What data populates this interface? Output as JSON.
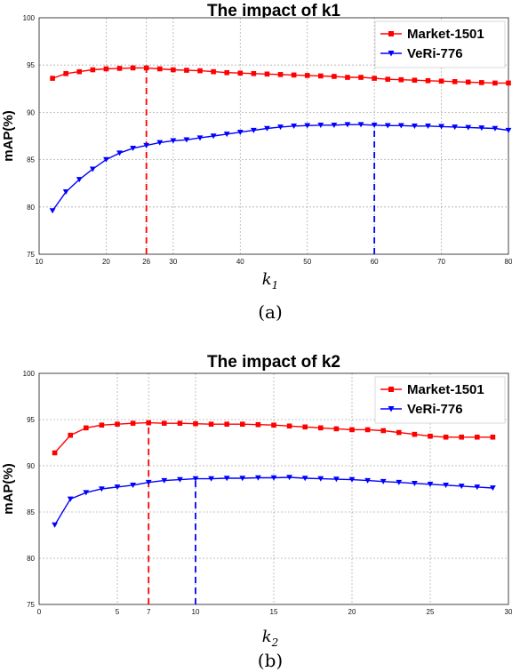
{
  "chart_data": [
    {
      "type": "line",
      "title": "The impact of k1",
      "ylabel": "mAP(%)",
      "xlabel_main": "k",
      "xlabel_sub": "1",
      "caption": "(a)",
      "xlim": [
        10,
        80
      ],
      "ylim": [
        75,
        100
      ],
      "xticks": [
        10,
        20,
        26,
        30,
        40,
        50,
        60,
        70,
        80
      ],
      "yticks": [
        75,
        80,
        85,
        90,
        95,
        100
      ],
      "grid": true,
      "legend_position": "top-right",
      "series": [
        {
          "name": "Market-1501",
          "color": "#ff0000",
          "marker": "square",
          "x": [
            12,
            14,
            16,
            18,
            20,
            22,
            24,
            26,
            28,
            30,
            32,
            34,
            36,
            38,
            40,
            42,
            44,
            46,
            48,
            50,
            52,
            54,
            56,
            58,
            60,
            62,
            64,
            66,
            68,
            70,
            72,
            74,
            76,
            78,
            80
          ],
          "y": [
            93.6,
            94.1,
            94.3,
            94.5,
            94.6,
            94.65,
            94.7,
            94.7,
            94.6,
            94.5,
            94.45,
            94.4,
            94.3,
            94.2,
            94.15,
            94.1,
            94.05,
            94.0,
            93.95,
            93.9,
            93.85,
            93.8,
            93.7,
            93.7,
            93.6,
            93.5,
            93.45,
            93.4,
            93.35,
            93.3,
            93.25,
            93.2,
            93.15,
            93.1,
            93.1
          ]
        },
        {
          "name": "VeRi-776",
          "color": "#0000ff",
          "marker": "triangle-down",
          "x": [
            12,
            14,
            16,
            18,
            20,
            22,
            24,
            26,
            28,
            30,
            32,
            34,
            36,
            38,
            40,
            42,
            44,
            46,
            48,
            50,
            52,
            54,
            56,
            58,
            60,
            62,
            64,
            66,
            68,
            70,
            72,
            74,
            76,
            78,
            80
          ],
          "y": [
            79.6,
            81.6,
            82.9,
            84.0,
            85.0,
            85.7,
            86.2,
            86.5,
            86.8,
            87.0,
            87.1,
            87.3,
            87.5,
            87.7,
            87.9,
            88.1,
            88.3,
            88.45,
            88.55,
            88.6,
            88.65,
            88.65,
            88.7,
            88.7,
            88.65,
            88.6,
            88.6,
            88.55,
            88.55,
            88.5,
            88.45,
            88.4,
            88.35,
            88.3,
            88.1
          ]
        }
      ],
      "reference_lines": [
        {
          "x": 26,
          "color": "#ff0000"
        },
        {
          "x": 60,
          "color": "#0000ff"
        }
      ]
    },
    {
      "type": "line",
      "title": "The impact of k2",
      "ylabel": "mAP(%)",
      "xlabel_main": "k",
      "xlabel_sub": "2",
      "caption": "(b)",
      "xlim": [
        0,
        30
      ],
      "ylim": [
        75,
        100
      ],
      "xticks": [
        0,
        5,
        7,
        10,
        15,
        20,
        25,
        30
      ],
      "yticks": [
        75,
        80,
        85,
        90,
        95,
        100
      ],
      "grid": true,
      "legend_position": "top-right",
      "series": [
        {
          "name": "Market-1501",
          "color": "#ff0000",
          "marker": "square",
          "x": [
            1,
            2,
            3,
            4,
            5,
            6,
            7,
            8,
            9,
            10,
            11,
            12,
            13,
            14,
            15,
            16,
            17,
            18,
            19,
            20,
            21,
            22,
            23,
            24,
            25,
            26,
            27,
            28,
            29
          ],
          "y": [
            91.4,
            93.3,
            94.1,
            94.4,
            94.5,
            94.6,
            94.65,
            94.6,
            94.6,
            94.55,
            94.5,
            94.5,
            94.5,
            94.45,
            94.4,
            94.3,
            94.2,
            94.1,
            94.0,
            93.9,
            93.9,
            93.8,
            93.6,
            93.4,
            93.2,
            93.1,
            93.1,
            93.1,
            93.1
          ]
        },
        {
          "name": "VeRi-776",
          "color": "#0000ff",
          "marker": "triangle-down",
          "x": [
            1,
            2,
            3,
            4,
            5,
            6,
            7,
            8,
            9,
            10,
            11,
            12,
            13,
            14,
            15,
            16,
            17,
            18,
            19,
            20,
            21,
            22,
            23,
            24,
            25,
            26,
            27,
            28,
            29
          ],
          "y": [
            83.6,
            86.4,
            87.1,
            87.5,
            87.7,
            87.9,
            88.2,
            88.4,
            88.5,
            88.6,
            88.6,
            88.65,
            88.65,
            88.7,
            88.7,
            88.75,
            88.65,
            88.6,
            88.55,
            88.5,
            88.4,
            88.3,
            88.2,
            88.1,
            88.0,
            87.9,
            87.8,
            87.7,
            87.6
          ]
        }
      ],
      "reference_lines": [
        {
          "x": 7,
          "color": "#ff0000"
        },
        {
          "x": 10,
          "color": "#0000ff"
        }
      ]
    }
  ]
}
